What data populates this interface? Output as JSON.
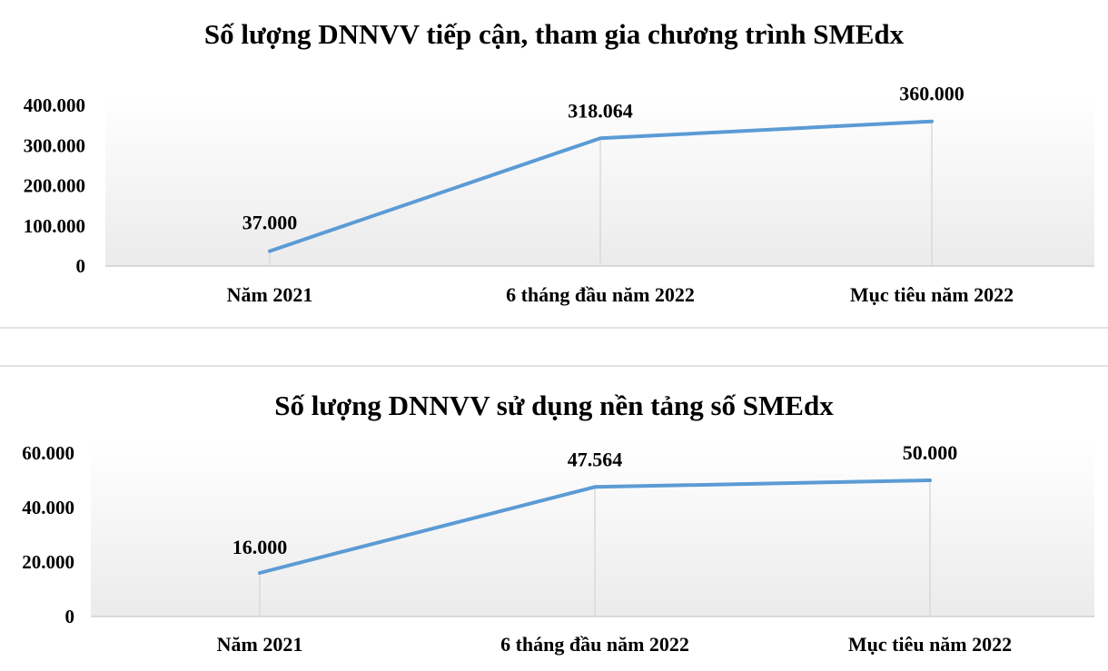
{
  "colors": {
    "line": "#5b9bd5",
    "drop": "#d9d9d9",
    "axis": "#cfcfcf",
    "plot_bg_top": "#ffffff",
    "plot_bg_bottom": "#ebebeb"
  },
  "chart_data": [
    {
      "type": "line",
      "title": "Số lượng DNNVV tiếp cận, tham gia chương trình SMEdx",
      "categories": [
        "Năm 2021",
        "6 tháng đầu năm 2022",
        "Mục tiêu năm 2022"
      ],
      "values": [
        37000,
        318064,
        360000
      ],
      "data_labels": [
        "37.000",
        "318.064",
        "360.000"
      ],
      "yticks": [
        0,
        100000,
        200000,
        300000,
        400000
      ],
      "ytick_labels": [
        "0",
        "100.000",
        "200.000",
        "300.000",
        "400.000"
      ],
      "ylim": [
        0,
        400000
      ],
      "xlabel": "",
      "ylabel": "",
      "grid": false,
      "legend": "none"
    },
    {
      "type": "line",
      "title": "Số lượng DNNVV sử dụng nền tảng số SMEdx",
      "categories": [
        "Năm 2021",
        "6 tháng đầu năm 2022",
        "Mục tiêu năm 2022"
      ],
      "values": [
        16000,
        47564,
        50000
      ],
      "data_labels": [
        "16.000",
        "47.564",
        "50.000"
      ],
      "yticks": [
        0,
        20000,
        40000,
        60000
      ],
      "ytick_labels": [
        "0",
        "20.000",
        "40.000",
        "60.000"
      ],
      "ylim": [
        0,
        60000
      ],
      "xlabel": "",
      "ylabel": "",
      "grid": false,
      "legend": "none"
    }
  ]
}
